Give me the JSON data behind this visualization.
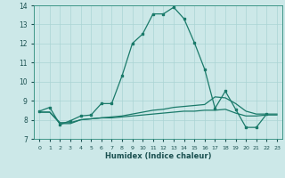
{
  "xlabel": "Humidex (Indice chaleur)",
  "background_color": "#cce8e8",
  "grid_color": "#aad4d4",
  "line_color": "#1a7a6a",
  "xlim": [
    -0.5,
    23.5
  ],
  "ylim": [
    7,
    14
  ],
  "yticks": [
    7,
    8,
    9,
    10,
    11,
    12,
    13,
    14
  ],
  "xticks": [
    0,
    1,
    2,
    3,
    4,
    5,
    6,
    7,
    8,
    9,
    10,
    11,
    12,
    13,
    14,
    15,
    16,
    17,
    18,
    19,
    20,
    21,
    22,
    23
  ],
  "series1_x": [
    0,
    1,
    2,
    3,
    4,
    5,
    6,
    7,
    8,
    9,
    10,
    11,
    12,
    13,
    14,
    15,
    16,
    17,
    18,
    19,
    20,
    21,
    22
  ],
  "series1_y": [
    8.45,
    8.65,
    7.75,
    7.95,
    8.2,
    8.25,
    8.85,
    8.85,
    10.3,
    12.0,
    12.5,
    13.55,
    13.55,
    13.9,
    13.3,
    12.05,
    10.65,
    8.6,
    9.5,
    8.55,
    7.6,
    7.6,
    8.3
  ],
  "series2_x": [
    0,
    1,
    2,
    3,
    4,
    5,
    6,
    7,
    8,
    9,
    10,
    11,
    12,
    13,
    14,
    15,
    16,
    17,
    18,
    19,
    20,
    21,
    22,
    23
  ],
  "series2_y": [
    8.4,
    8.4,
    7.8,
    7.8,
    8.0,
    8.05,
    8.1,
    8.15,
    8.2,
    8.3,
    8.4,
    8.5,
    8.55,
    8.65,
    8.7,
    8.75,
    8.8,
    9.2,
    9.15,
    8.85,
    8.45,
    8.3,
    8.3,
    8.3
  ],
  "series3_x": [
    0,
    1,
    2,
    3,
    4,
    5,
    6,
    7,
    8,
    9,
    10,
    11,
    12,
    13,
    14,
    15,
    16,
    17,
    18,
    19,
    20,
    21,
    22,
    23
  ],
  "series3_y": [
    8.4,
    8.4,
    7.85,
    7.85,
    8.0,
    8.05,
    8.1,
    8.1,
    8.15,
    8.2,
    8.25,
    8.3,
    8.35,
    8.4,
    8.45,
    8.45,
    8.5,
    8.5,
    8.55,
    8.35,
    8.2,
    8.2,
    8.25,
    8.25
  ]
}
